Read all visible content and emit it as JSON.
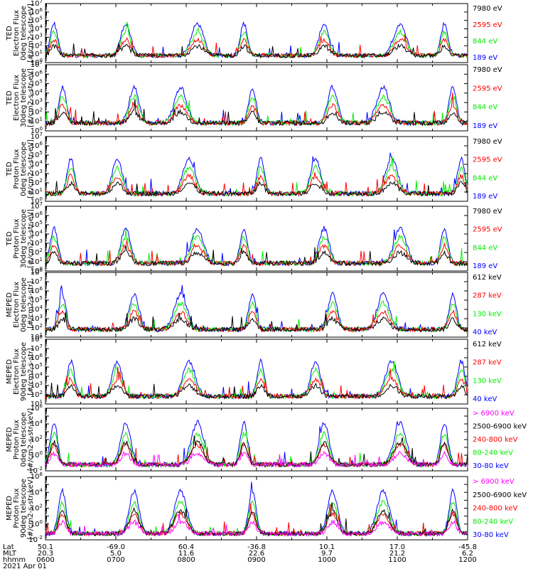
{
  "chart_data": [
    {
      "type": "line",
      "ylabel": [
        "TED",
        "Electron Flux",
        "0deg telescope",
        "[#/cm2-s-str-eV]"
      ],
      "yscale": "log",
      "ylim_exp": [
        0,
        7
      ],
      "series": [
        {
          "name": "7980 eV",
          "color": "#000000"
        },
        {
          "name": "2595 eV",
          "color": "#ff0000"
        },
        {
          "name": "844 eV",
          "color": "#00ee00"
        },
        {
          "name": "189 eV",
          "color": "#0000ff"
        }
      ]
    },
    {
      "type": "line",
      "ylabel": [
        "TED",
        "Electron Flux",
        "30deg telescope",
        "[#/cm2-s-str-eV]"
      ],
      "yscale": "log",
      "ylim_exp": [
        0,
        7
      ],
      "series": [
        {
          "name": "7980 eV",
          "color": "#000000"
        },
        {
          "name": "2595 eV",
          "color": "#ff0000"
        },
        {
          "name": "844 eV",
          "color": "#00ee00"
        },
        {
          "name": "189 eV",
          "color": "#0000ff"
        }
      ]
    },
    {
      "type": "line",
      "ylabel": [
        "TED",
        "Proton Flux",
        "0deg telescope",
        "[#/cm2-s-str-eV]"
      ],
      "yscale": "log",
      "ylim_exp": [
        0,
        7
      ],
      "series": [
        {
          "name": "7980 eV",
          "color": "#000000"
        },
        {
          "name": "2595 eV",
          "color": "#ff0000"
        },
        {
          "name": "844 eV",
          "color": "#00ee00"
        },
        {
          "name": "189 eV",
          "color": "#0000ff"
        }
      ]
    },
    {
      "type": "line",
      "ylabel": [
        "TED",
        "Proton Flux",
        "30deg telescope",
        "[#/cm2-s-str-eV]"
      ],
      "yscale": "log",
      "ylim_exp": [
        0,
        7
      ],
      "series": [
        {
          "name": "7980 eV",
          "color": "#000000"
        },
        {
          "name": "2595 eV",
          "color": "#ff0000"
        },
        {
          "name": "844 eV",
          "color": "#00ee00"
        },
        {
          "name": "189 eV",
          "color": "#0000ff"
        }
      ]
    },
    {
      "type": "line",
      "ylabel": [
        "MEPED",
        "Electron Flux",
        "0deg telescope",
        "[#/cm2-s-str]"
      ],
      "yscale": "log",
      "ylim_exp": [
        1,
        8
      ],
      "series": [
        {
          "name": "612 keV",
          "color": "#000000"
        },
        {
          "name": "287 keV",
          "color": "#ff0000"
        },
        {
          "name": "130 keV",
          "color": "#00ee00"
        },
        {
          "name": "40 keV",
          "color": "#0000ff"
        }
      ]
    },
    {
      "type": "line",
      "ylabel": [
        "MEPED",
        "Electron Flux",
        "90deg telescope",
        "[#/cm2-s-str]"
      ],
      "yscale": "log",
      "ylim_exp": [
        1,
        8
      ],
      "series": [
        {
          "name": "612 keV",
          "color": "#000000"
        },
        {
          "name": "287 keV",
          "color": "#ff0000"
        },
        {
          "name": "130 keV",
          "color": "#00ee00"
        },
        {
          "name": "40 keV",
          "color": "#0000ff"
        }
      ]
    },
    {
      "type": "line",
      "ylabel": [
        "MEPED",
        "Proton Flux",
        "0deg telescope",
        "[#/cm2-s-str-keV]"
      ],
      "yscale": "log",
      "ylim_exp": [
        -2,
        6
      ],
      "series": [
        {
          "name": "> 6900 keV",
          "color": "#ff00ff"
        },
        {
          "name": "2500-6900 keV",
          "color": "#000000"
        },
        {
          "name": "240-800 keV",
          "color": "#ff0000"
        },
        {
          "name": "80-240 keV",
          "color": "#00ee00"
        },
        {
          "name": "30-80 keV",
          "color": "#0000ff"
        }
      ]
    },
    {
      "type": "line",
      "ylabel": [
        "MEPED",
        "Proton Flux",
        "90deg telescope",
        "[#/cm2-s-str-keV]"
      ],
      "yscale": "log",
      "ylim_exp": [
        -2,
        6
      ],
      "series": [
        {
          "name": "> 6900 keV",
          "color": "#ff00ff"
        },
        {
          "name": "2500-6900 keV",
          "color": "#000000"
        },
        {
          "name": "240-800 keV",
          "color": "#ff0000"
        },
        {
          "name": "80-240 keV",
          "color": "#00ee00"
        },
        {
          "name": "30-80 keV",
          "color": "#0000ff"
        }
      ]
    }
  ],
  "x_axis": {
    "row_labels": [
      "Lat",
      "MLT",
      "hhmm",
      "2021 Apr 01"
    ],
    "ticks": [
      {
        "lat": "50.1",
        "mlt": "20.3",
        "hhmm": "0600"
      },
      {
        "lat": "-69.0",
        "mlt": "5.0",
        "hhmm": "0700"
      },
      {
        "lat": "60.4",
        "mlt": "11.6",
        "hhmm": "0800"
      },
      {
        "lat": "-36.8",
        "mlt": "22.6",
        "hhmm": "0900"
      },
      {
        "lat": "10.1",
        "mlt": "9.7",
        "hhmm": "1000"
      },
      {
        "lat": "17.0",
        "mlt": "21.2",
        "hhmm": "1100"
      },
      {
        "lat": "-45.8",
        "mlt": "6.2",
        "hhmm": "1200"
      }
    ]
  }
}
